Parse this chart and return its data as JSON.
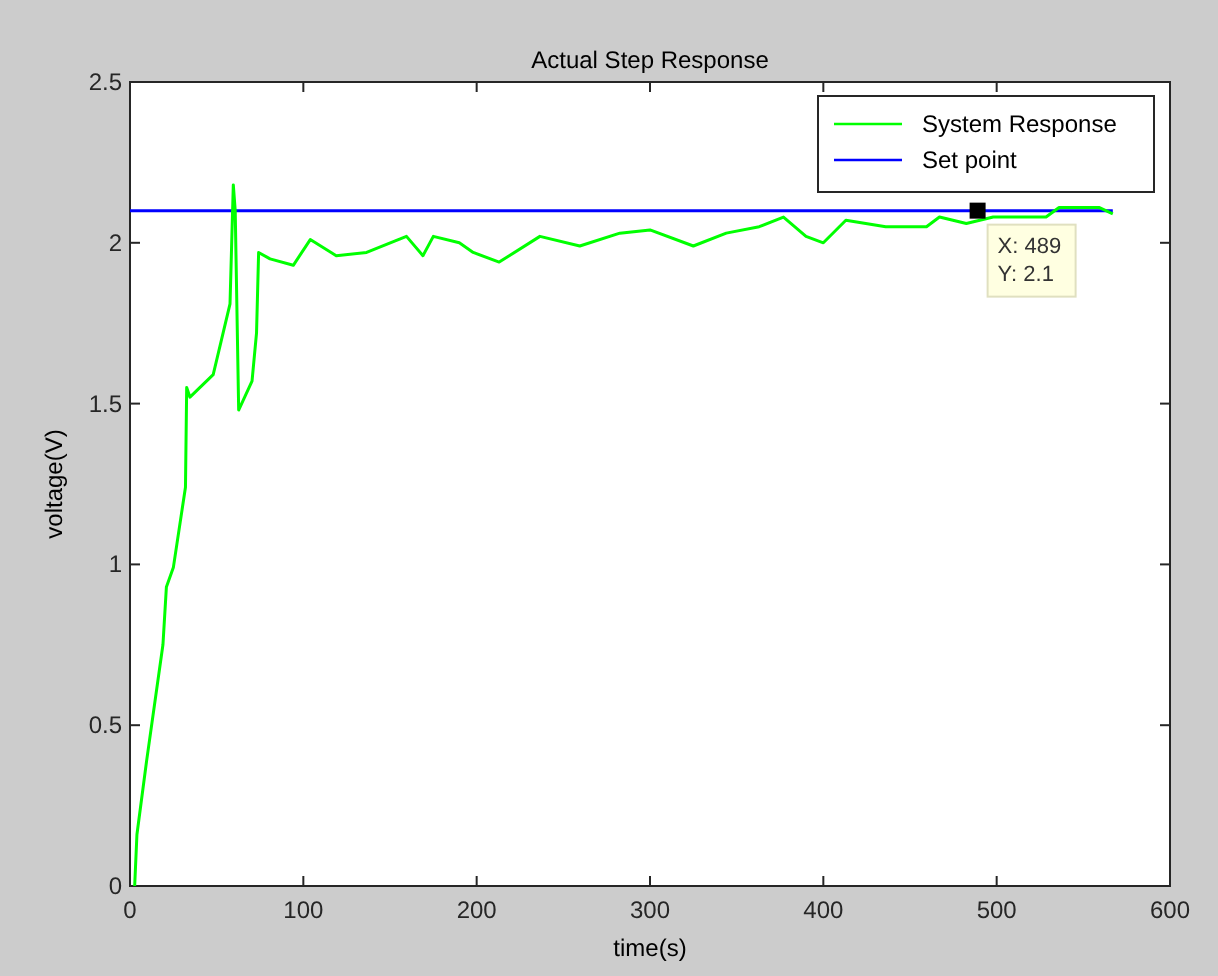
{
  "chart_data": {
    "type": "line",
    "title": "Actual Step Response",
    "xlabel": "time(s)",
    "ylabel": "voltage(V)",
    "xlim": [
      0,
      600
    ],
    "xticks": [
      0,
      100,
      200,
      300,
      400,
      500,
      600
    ],
    "ylim": [
      0,
      2.5
    ],
    "yticks": [
      0,
      0.5,
      1,
      1.5,
      2,
      2.5
    ],
    "grid": false,
    "legend": "top right",
    "marker": "none",
    "line_style": "solid",
    "series": [
      {
        "name": "System Response",
        "color": "#00ff00",
        "x": [
          2.7,
          4,
          9.6,
          19,
          21,
          25,
          32,
          32.7,
          34.6,
          48,
          57.7,
          59.6,
          60.7,
          62.7,
          70.4,
          73,
          74.2,
          80.8,
          94.2,
          104,
          119,
          136.5,
          159.5,
          169,
          175,
          190,
          198,
          213,
          236.5,
          259.5,
          282.6,
          300,
          325,
          344,
          363,
          377,
          390,
          400,
          413,
          436,
          459.5,
          467,
          482.5,
          498,
          528.5,
          536,
          559,
          567
        ],
        "values": [
          0,
          0.16,
          0.39,
          0.75,
          0.93,
          0.99,
          1.24,
          1.55,
          1.52,
          1.59,
          1.81,
          2.18,
          2.1,
          1.48,
          1.57,
          1.72,
          1.97,
          1.95,
          1.93,
          2.01,
          1.96,
          1.97,
          2.02,
          1.96,
          2.02,
          2.0,
          1.97,
          1.94,
          2.02,
          1.99,
          2.03,
          2.04,
          1.99,
          2.03,
          2.05,
          2.08,
          2.02,
          2.0,
          2.07,
          2.05,
          2.05,
          2.08,
          2.06,
          2.08,
          2.08,
          2.11,
          2.11,
          2.09
        ]
      },
      {
        "name": "Set point",
        "color": "#0000ff",
        "x": [
          0,
          567
        ],
        "values": [
          2.1,
          2.1
        ]
      }
    ],
    "annotations": [
      {
        "text": "X: 489\nY: 2.1",
        "x": 489,
        "y": 2.1
      }
    ]
  }
}
